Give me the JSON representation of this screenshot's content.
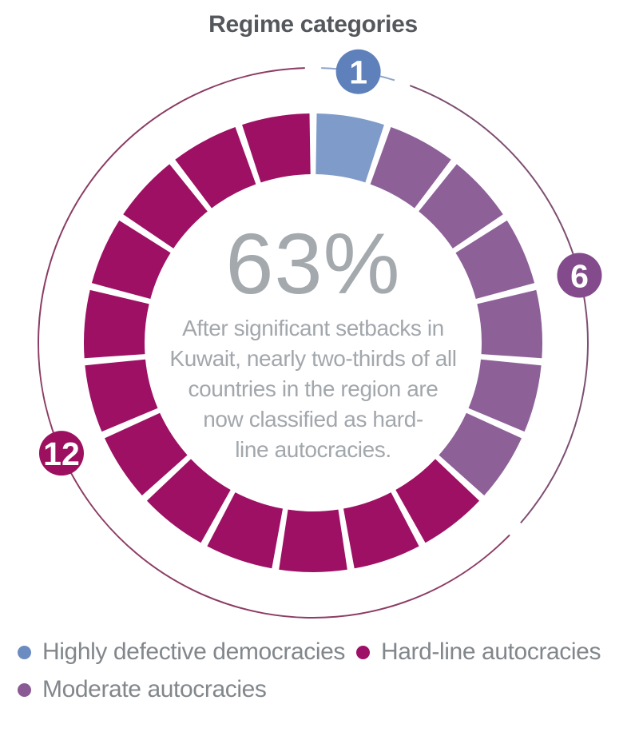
{
  "title": "Regime categories",
  "center": {
    "value": "63%",
    "caption": "After significant setbacks in\nKuwait, nearly two-thirds of all\ncountries in the region are\nnow classified as hard-\nline autocracies."
  },
  "chart_data": {
    "type": "donut",
    "title": "Regime categories",
    "total_segments": 19,
    "center_value": "63%",
    "center_caption": "After significant setbacks in Kuwait, nearly two-thirds of all countries in the region are now classified as hard-line autocracies.",
    "series": [
      {
        "name": "Highly defective democracies",
        "count": 1,
        "badge_label": "1",
        "color": "#7F9BC9",
        "badge_color": "#5E81BB",
        "arc_color": "#8FA5CB"
      },
      {
        "name": "Moderate autocracies",
        "count": 6,
        "badge_label": "6",
        "color": "#8D6098",
        "badge_color": "#834B8C",
        "arc_color": "#7D4F72"
      },
      {
        "name": "Hard-line autocracies",
        "count": 12,
        "badge_label": "12",
        "color": "#9D1063",
        "badge_color": "#9D1060",
        "arc_color": "#8C3C64"
      }
    ],
    "legend": [
      {
        "label": "Highly defective democracies",
        "color": "#6A8CC0"
      },
      {
        "label": "Hard-line autocracies",
        "color": "#9E1068"
      },
      {
        "label": "Moderate autocracies",
        "color": "#8A5A94"
      }
    ],
    "legend_position": "bottom",
    "grid": false
  }
}
